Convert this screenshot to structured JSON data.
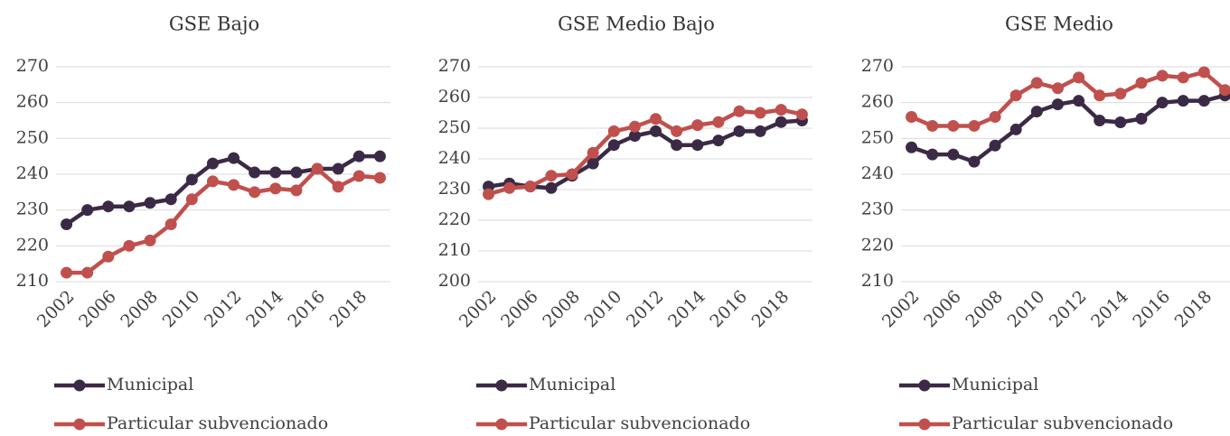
{
  "chart_data": [
    {
      "type": "line",
      "title": "GSE Bajo",
      "categories": [
        "2002",
        null,
        "2006",
        null,
        "2008",
        null,
        "2010",
        null,
        "2012",
        null,
        "2014",
        null,
        "2016",
        null,
        "2018",
        null
      ],
      "series": [
        {
          "name": "Municipal",
          "color": "#3b2a45",
          "values": [
            226,
            230,
            231,
            231,
            232,
            233,
            238.5,
            243,
            244.5,
            240.5,
            240.5,
            240.5,
            241.5,
            241.5,
            245,
            245
          ]
        },
        {
          "name": "Particular subvencionado",
          "color": "#c0504d",
          "values": [
            212.5,
            212.5,
            217,
            220,
            221.5,
            226,
            233,
            238,
            237,
            235,
            236,
            235.5,
            241.5,
            236.5,
            239.5,
            239
          ]
        }
      ],
      "ylim": [
        210,
        270
      ],
      "yticks": [
        210,
        220,
        230,
        240,
        250,
        260,
        270
      ],
      "grid": true,
      "legend": "bottom"
    },
    {
      "type": "line",
      "title": "GSE Medio Bajo",
      "categories": [
        "2002",
        null,
        "2006",
        null,
        "2008",
        null,
        "2010",
        null,
        "2012",
        null,
        "2014",
        null,
        "2016",
        null,
        "2018",
        null
      ],
      "series": [
        {
          "name": "Municipal",
          "color": "#3b2a45",
          "values": [
            231,
            232,
            231,
            230.5,
            234.5,
            238.5,
            244.5,
            247.5,
            249,
            244.5,
            244.5,
            246,
            249,
            249,
            252,
            252.5
          ]
        },
        {
          "name": "Particular subvencionado",
          "color": "#c0504d",
          "values": [
            228.5,
            230.5,
            231,
            234.5,
            235,
            242,
            249,
            250.5,
            253,
            249,
            251,
            252,
            255.5,
            255,
            256,
            254.5
          ]
        }
      ],
      "ylim": [
        200,
        270
      ],
      "yticks": [
        200,
        210,
        220,
        230,
        240,
        250,
        260,
        270
      ],
      "grid": true,
      "legend": "bottom"
    },
    {
      "type": "line",
      "title": "GSE Medio",
      "categories": [
        "2002",
        null,
        "2006",
        null,
        "2008",
        null,
        "2010",
        null,
        "2012",
        null,
        "2014",
        null,
        "2016",
        null,
        "2018",
        null
      ],
      "series": [
        {
          "name": "Municipal",
          "color": "#3b2a45",
          "values": [
            247.5,
            245.5,
            245.5,
            243.5,
            248,
            252.5,
            257.5,
            259.5,
            260.5,
            255,
            254.5,
            255.5,
            260,
            260.5,
            260.5,
            262
          ]
        },
        {
          "name": "Particular subvencionado",
          "color": "#c0504d",
          "values": [
            256,
            253.5,
            253.5,
            253.5,
            256,
            262,
            265.5,
            264,
            267,
            262,
            262.5,
            265.5,
            267.5,
            267,
            268.5,
            263.5
          ]
        }
      ],
      "ylim": [
        210,
        270
      ],
      "yticks": [
        210,
        220,
        230,
        240,
        250,
        260,
        270
      ],
      "grid": true,
      "legend": "bottom"
    }
  ]
}
